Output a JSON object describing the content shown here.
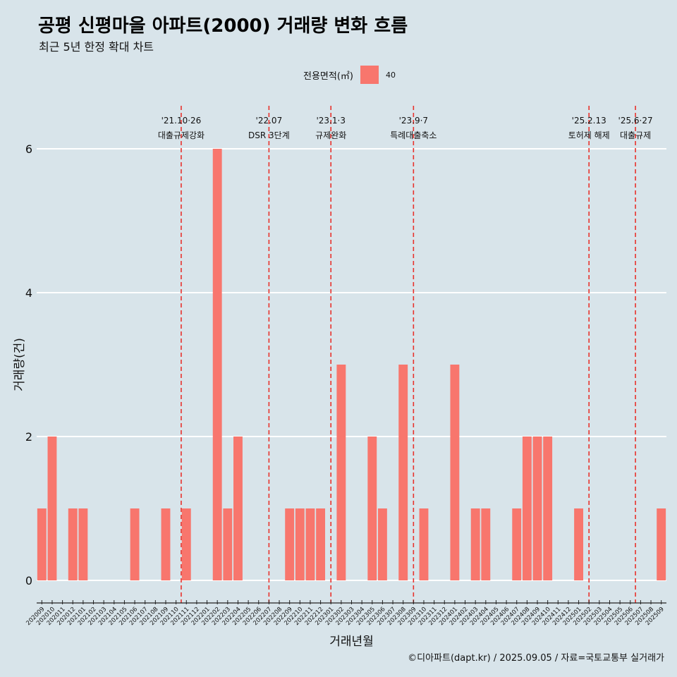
{
  "header": {
    "title": "공평 신평마을 아파트(2000) 거래량 변화 흐름",
    "subtitle": "최근 5년 한정 확대 차트"
  },
  "legend": {
    "title": "전용면적(㎡)",
    "label": "40",
    "color": "#f8766d"
  },
  "caption": "©디아파트(dapt.kr) / 2025.09.05 / 자료=국토교통부 실거래가",
  "chart_data": {
    "type": "bar",
    "xlabel": "거래년월",
    "ylabel": "거래량(건)",
    "ylim": [
      0,
      6
    ],
    "yticks": [
      0,
      2,
      4,
      6
    ],
    "grid": true,
    "legend_position": "top",
    "categories": [
      "202009",
      "202010",
      "202011",
      "202012",
      "202101",
      "202102",
      "202103",
      "202104",
      "202105",
      "202106",
      "202107",
      "202108",
      "202109",
      "202110",
      "202111",
      "202112",
      "202201",
      "202202",
      "202203",
      "202204",
      "202205",
      "202206",
      "202207",
      "202208",
      "202209",
      "202210",
      "202211",
      "202212",
      "202301",
      "202302",
      "202303",
      "202304",
      "202305",
      "202306",
      "202307",
      "202308",
      "202309",
      "202310",
      "202311",
      "202312",
      "202401",
      "202402",
      "202403",
      "202404",
      "202405",
      "202406",
      "202407",
      "202408",
      "202409",
      "202410",
      "202411",
      "202412",
      "202501",
      "202502",
      "202503",
      "202504",
      "202505",
      "202506",
      "202507",
      "202508",
      "202509"
    ],
    "series": [
      {
        "name": "40",
        "color": "#f8766d",
        "values": [
          1,
          2,
          0,
          1,
          1,
          0,
          0,
          0,
          0,
          1,
          0,
          0,
          1,
          0,
          1,
          0,
          0,
          6,
          1,
          2,
          0,
          0,
          0,
          0,
          1,
          1,
          1,
          1,
          0,
          3,
          0,
          0,
          2,
          1,
          0,
          3,
          0,
          1,
          0,
          0,
          3,
          0,
          1,
          1,
          0,
          0,
          1,
          2,
          2,
          2,
          0,
          0,
          1,
          0,
          0,
          0,
          0,
          0,
          0,
          0,
          1
        ]
      }
    ],
    "events": [
      {
        "date": "'21.10·26",
        "label": "대출규제강화",
        "month": "202110",
        "offset": 0.5
      },
      {
        "date": "'22.07",
        "label": "DSR 3단계",
        "month": "202207",
        "offset": 0.0
      },
      {
        "date": "'23.1·3",
        "label": "규제완화",
        "month": "202301",
        "offset": 0.0
      },
      {
        "date": "'23.9·7",
        "label": "특례대출축소",
        "month": "202309",
        "offset": 0.0
      },
      {
        "date": "'25.2.13",
        "label": "토허제 해제",
        "month": "202502",
        "offset": 0.0
      },
      {
        "date": "'25.6·27",
        "label": "대출규제",
        "month": "202506",
        "offset": 0.5
      }
    ]
  }
}
